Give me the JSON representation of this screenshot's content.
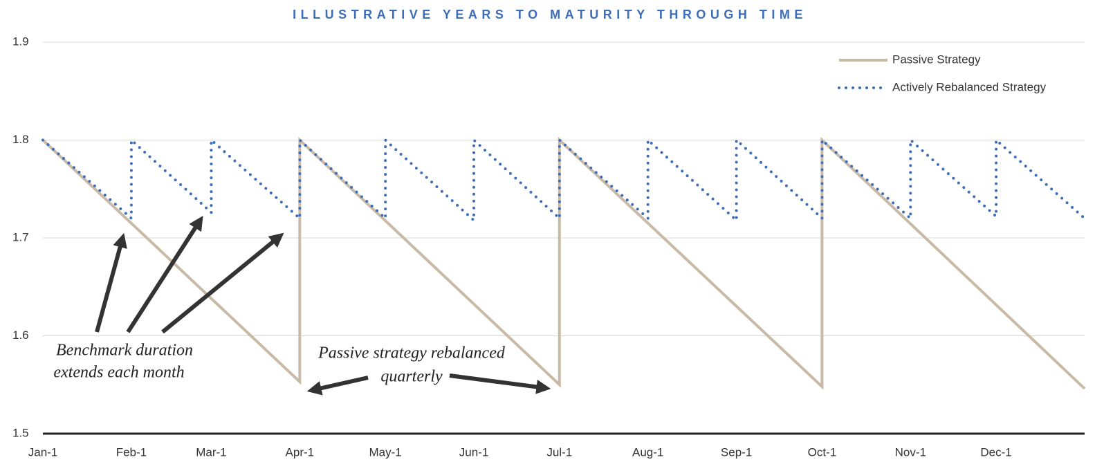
{
  "chart_data": {
    "type": "line",
    "title": "ILLUSTRATIVE YEARS TO MATURITY THROUGH TIME",
    "xlim": [
      0,
      365
    ],
    "xticks": [
      {
        "value": 0,
        "label": "Jan-1"
      },
      {
        "value": 31,
        "label": "Feb-1"
      },
      {
        "value": 59,
        "label": "Mar-1"
      },
      {
        "value": 90,
        "label": "Apr-1"
      },
      {
        "value": 120,
        "label": "May-1"
      },
      {
        "value": 151,
        "label": "Jun-1"
      },
      {
        "value": 181,
        "label": "Jul-1"
      },
      {
        "value": 212,
        "label": "Aug-1"
      },
      {
        "value": 243,
        "label": "Sep-1"
      },
      {
        "value": 273,
        "label": "Oct-1"
      },
      {
        "value": 304,
        "label": "Nov-1"
      },
      {
        "value": 334,
        "label": "Dec-1"
      }
    ],
    "ylim": [
      1.5,
      1.9
    ],
    "yticks": [
      1.5,
      1.6,
      1.7,
      1.8,
      1.9
    ],
    "grid": true,
    "legend": "top-right",
    "series": [
      {
        "name": "Passive Strategy",
        "color": "#c9baa7",
        "style": "solid",
        "x": [
          0,
          90,
          90,
          181,
          181,
          273,
          273,
          365
        ],
        "values": [
          1.8,
          1.553,
          1.8,
          1.55,
          1.8,
          1.548,
          1.8,
          1.546
        ]
      },
      {
        "name": "Actively Rebalanced Strategy",
        "color": "#3d6cb8",
        "style": "dotted",
        "x": [
          0,
          31,
          31,
          59,
          59,
          90,
          90,
          120,
          120,
          151,
          151,
          181,
          181,
          212,
          212,
          243,
          243,
          273,
          273,
          304,
          304,
          334,
          334,
          365
        ],
        "values": [
          1.8,
          1.72,
          1.8,
          1.726,
          1.8,
          1.72,
          1.8,
          1.72,
          1.8,
          1.718,
          1.8,
          1.72,
          1.8,
          1.72,
          1.8,
          1.718,
          1.8,
          1.72,
          1.8,
          1.72,
          1.8,
          1.722,
          1.8,
          1.72
        ]
      }
    ],
    "annotations": [
      {
        "text": [
          "Benchmark duration",
          "extends each month"
        ]
      },
      {
        "text": [
          "Passive strategy rebalanced",
          "quarterly"
        ]
      }
    ]
  }
}
